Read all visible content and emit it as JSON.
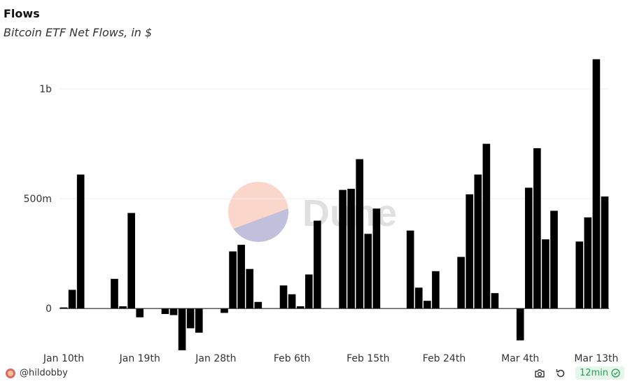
{
  "header": {
    "title": "Flows",
    "subtitle": "Bitcoin ETF Net Flows, in $"
  },
  "footer": {
    "author": "@hildobby",
    "refresh_badge": "12min"
  },
  "watermark": "Dune",
  "colors": {
    "bar": "#000000",
    "grid": "#eeeeee",
    "axis": "#222222",
    "badge_text": "#2a9d55",
    "badge_bg": "#e5f6ea"
  },
  "chart_data": {
    "type": "bar",
    "title": "Flows",
    "subtitle": "Bitcoin ETF Net Flows, in $",
    "xlabel": "",
    "ylabel": "",
    "ylim": [
      -200000000,
      1150000000
    ],
    "grid": true,
    "y_ticks": [
      {
        "value": 0,
        "label": "0"
      },
      {
        "value": 500000000,
        "label": "500m"
      },
      {
        "value": 1000000000,
        "label": "1b"
      }
    ],
    "x_ticks": [
      {
        "date": "2024-01-10",
        "label": "Jan 10th"
      },
      {
        "date": "2024-01-19",
        "label": "Jan 19th"
      },
      {
        "date": "2024-01-28",
        "label": "Jan 28th"
      },
      {
        "date": "2024-02-06",
        "label": "Feb 6th"
      },
      {
        "date": "2024-02-15",
        "label": "Feb 15th"
      },
      {
        "date": "2024-02-24",
        "label": "Feb 24th"
      },
      {
        "date": "2024-03-04",
        "label": "Mar 4th"
      },
      {
        "date": "2024-03-13",
        "label": "Mar 13th"
      }
    ],
    "series": [
      {
        "x": [
          "2024-01-10",
          "2024-01-11",
          "2024-01-12",
          "2024-01-16",
          "2024-01-17",
          "2024-01-18",
          "2024-01-19",
          "2024-01-22",
          "2024-01-23",
          "2024-01-24",
          "2024-01-25",
          "2024-01-26",
          "2024-01-29",
          "2024-01-30",
          "2024-01-31",
          "2024-02-01",
          "2024-02-02",
          "2024-02-03",
          "2024-02-05",
          "2024-02-06",
          "2024-02-07",
          "2024-02-08",
          "2024-02-09",
          "2024-02-12",
          "2024-02-13",
          "2024-02-14",
          "2024-02-15",
          "2024-02-16",
          "2024-02-20",
          "2024-02-21",
          "2024-02-22",
          "2024-02-23",
          "2024-02-26",
          "2024-02-27",
          "2024-02-28",
          "2024-02-29",
          "2024-03-01",
          "2024-03-04",
          "2024-03-05",
          "2024-03-06",
          "2024-03-07",
          "2024-03-08",
          "2024-03-11",
          "2024-03-12",
          "2024-03-13",
          "2024-03-14"
        ],
        "values": [
          5000000,
          85000000,
          610000000,
          135000000,
          10000000,
          435000000,
          -40000000,
          -25000000,
          -30000000,
          -190000000,
          -90000000,
          -110000000,
          -20000000,
          260000000,
          290000000,
          180000000,
          30000000,
          0,
          105000000,
          65000000,
          10000000,
          155000000,
          400000000,
          540000000,
          545000000,
          680000000,
          340000000,
          455000000,
          355000000,
          95000000,
          35000000,
          170000000,
          235000000,
          520000000,
          610000000,
          750000000,
          70000000,
          -145000000,
          550000000,
          730000000,
          315000000,
          445000000,
          305000000,
          415000000,
          1135000000,
          510000000
        ]
      }
    ]
  }
}
